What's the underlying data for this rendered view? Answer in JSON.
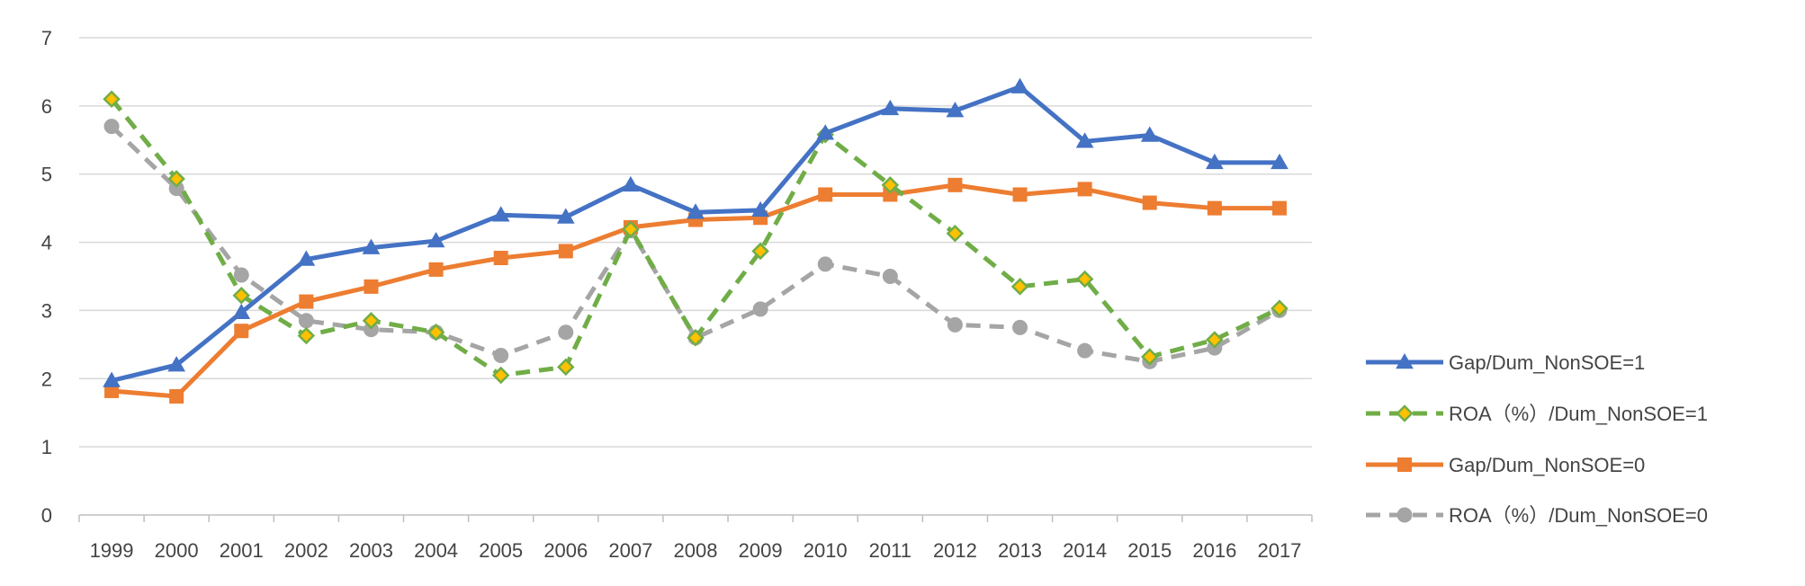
{
  "chart_data": {
    "type": "line",
    "title": "",
    "xlabel": "",
    "ylabel": "",
    "x": [
      "1999",
      "2000",
      "2001",
      "2002",
      "2003",
      "2004",
      "2005",
      "2006",
      "2007",
      "2008",
      "2009",
      "2010",
      "2011",
      "2012",
      "2013",
      "2014",
      "2015",
      "2016",
      "2017"
    ],
    "ylim": [
      0,
      7
    ],
    "yticks": [
      0,
      1,
      2,
      3,
      4,
      5,
      6,
      7
    ],
    "grid": "horizontal",
    "legend_position": "right",
    "series": [
      {
        "name": "Gap/Dum_NonSOE=1",
        "color": "#4472C4",
        "line_style": "solid",
        "marker": "triangle",
        "values": [
          1.97,
          2.2,
          2.97,
          3.75,
          3.92,
          4.02,
          4.4,
          4.37,
          4.84,
          4.44,
          4.47,
          5.6,
          5.96,
          5.93,
          6.28,
          5.48,
          5.57,
          5.17,
          5.17
        ]
      },
      {
        "name": "ROA（%）/Dum_NonSOE=1",
        "color": "#70AD47",
        "marker_fill": "#FFC000",
        "line_style": "dashed",
        "marker": "diamond",
        "values": [
          6.1,
          4.93,
          3.22,
          2.63,
          2.85,
          2.68,
          2.05,
          2.17,
          4.19,
          2.6,
          3.87,
          5.58,
          4.84,
          4.13,
          3.35,
          3.46,
          2.32,
          2.57,
          3.03
        ]
      },
      {
        "name": "Gap/Dum_NonSOE=0",
        "color": "#ED7D31",
        "line_style": "solid",
        "marker": "square",
        "values": [
          1.82,
          1.74,
          2.7,
          3.13,
          3.35,
          3.6,
          3.77,
          3.87,
          4.22,
          4.33,
          4.36,
          4.7,
          4.7,
          4.84,
          4.7,
          4.78,
          4.58,
          4.5,
          4.5
        ]
      },
      {
        "name": "ROA（%）/Dum_NonSOE=0",
        "color": "#A5A5A5",
        "line_style": "dashed",
        "marker": "circle",
        "values": [
          5.7,
          4.79,
          3.52,
          2.85,
          2.72,
          2.68,
          2.34,
          2.68,
          4.17,
          2.6,
          3.02,
          3.68,
          3.5,
          2.79,
          2.75,
          2.41,
          2.25,
          2.45,
          3.0
        ]
      }
    ]
  }
}
